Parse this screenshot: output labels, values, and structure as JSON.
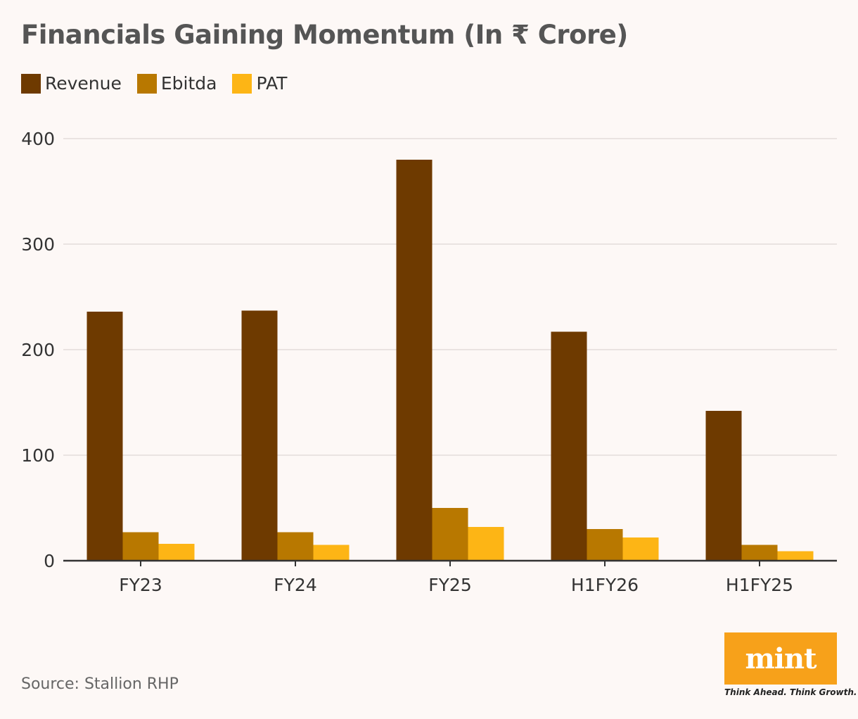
{
  "header": {
    "title": "Financials Gaining Momentum (In ₹ Crore)"
  },
  "legend": [
    {
      "name": "Revenue",
      "color": "#6e3a00"
    },
    {
      "name": "Ebitda",
      "color": "#b87800"
    },
    {
      "name": "PAT",
      "color": "#fdb515"
    }
  ],
  "chart_data": {
    "type": "bar",
    "categories": [
      "FY23",
      "FY24",
      "FY25",
      "H1FY26",
      "H1FY25"
    ],
    "series": [
      {
        "name": "Revenue",
        "values": [
          236,
          237,
          380,
          217,
          142
        ],
        "color": "#6e3a00"
      },
      {
        "name": "Ebitda",
        "values": [
          27,
          27,
          50,
          30,
          15
        ],
        "color": "#b87800"
      },
      {
        "name": "PAT",
        "values": [
          16,
          15,
          32,
          22,
          9
        ],
        "color": "#fdb515"
      }
    ],
    "yticks": [
      0,
      100,
      200,
      300,
      400
    ],
    "ylim": [
      0,
      400
    ],
    "grid": true,
    "legend_position": "top-left",
    "title": "Financials Gaining Momentum (In ₹ Crore)",
    "xlabel": "",
    "ylabel": ""
  },
  "footer": {
    "source": "Source: Stallion RHP",
    "logo_text": "mint",
    "tagline": "Think Ahead. Think Growth."
  }
}
